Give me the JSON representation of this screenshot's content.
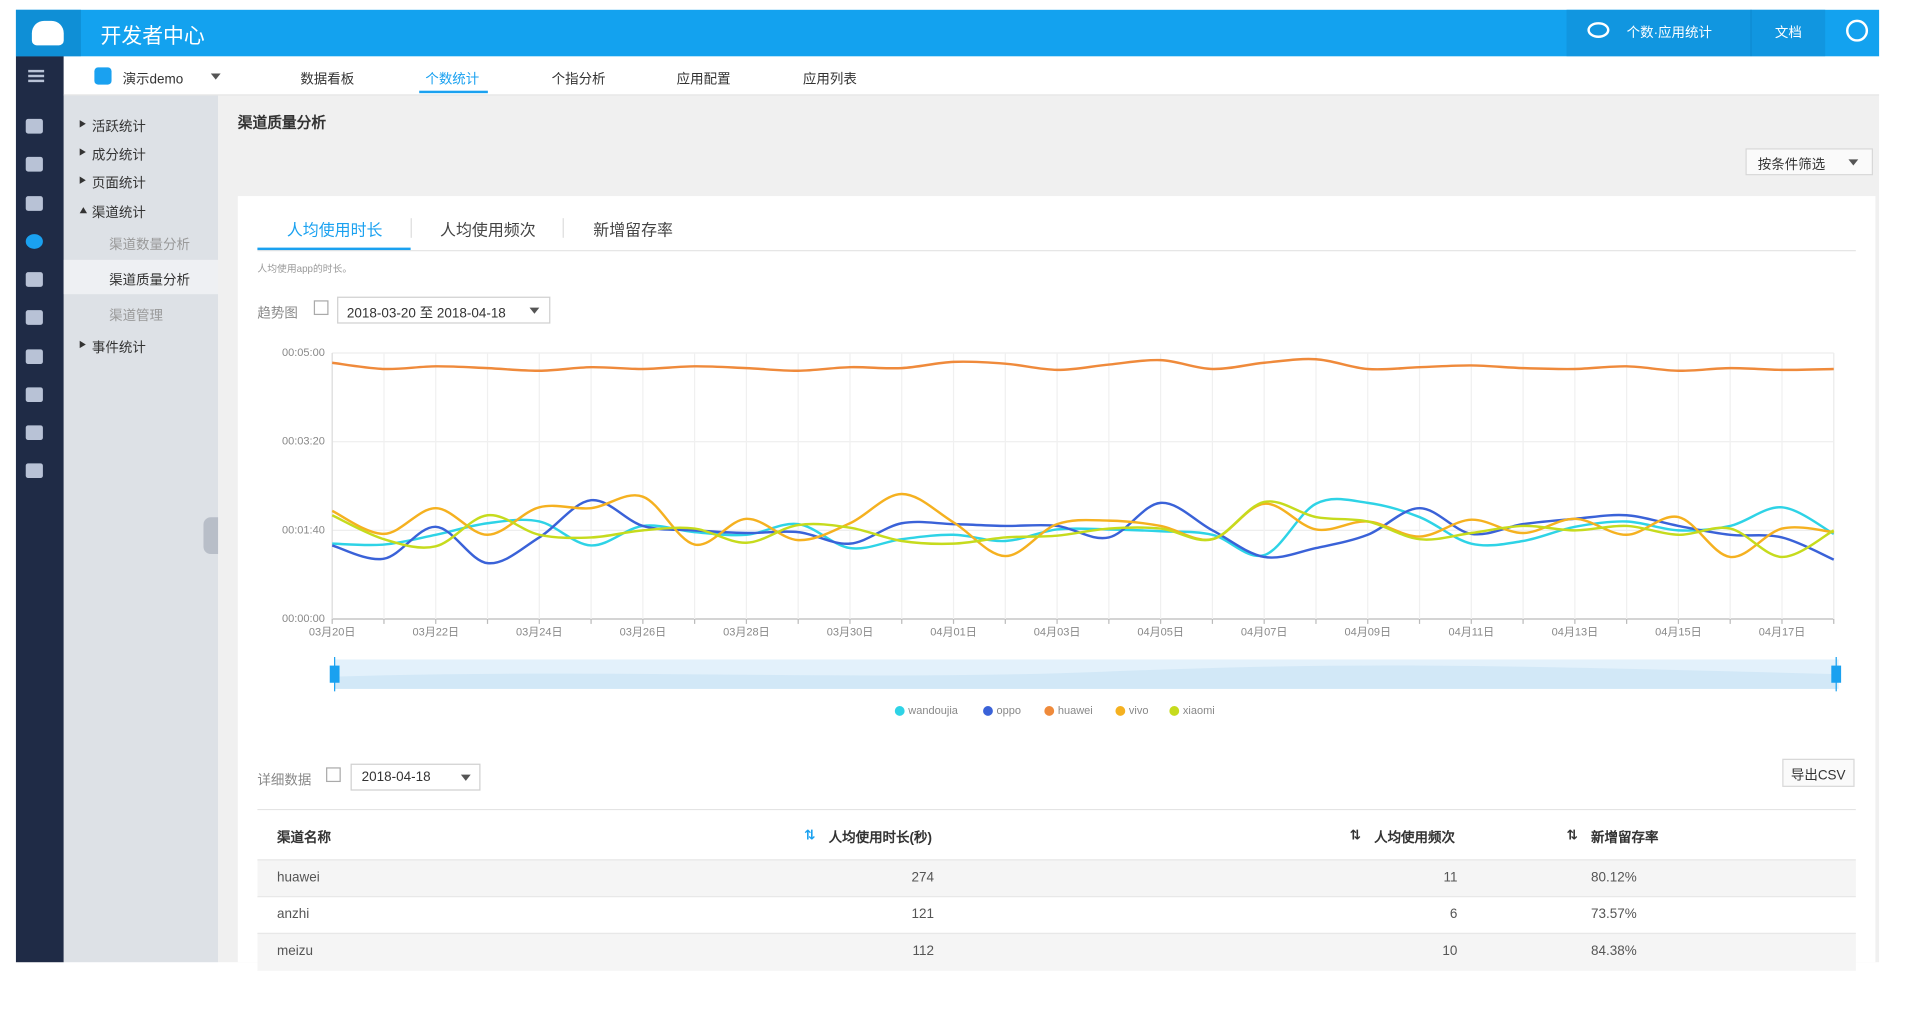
{
  "header": {
    "title": "开发者中心",
    "app_stats": "个数·应用统计",
    "docs": "文档"
  },
  "app_selector": "演示demo",
  "tabs": [
    "数据看板",
    "个数统计",
    "个指分析",
    "应用配置",
    "应用列表"
  ],
  "sidebar": {
    "groups": [
      "活跃统计",
      "成分统计",
      "页面统计",
      "渠道统计"
    ],
    "sub_items": [
      "渠道数量分析",
      "渠道质量分析",
      "渠道管理"
    ],
    "last_group": "事件统计"
  },
  "page_title": "渠道质量分析",
  "filter": "按条件筛选",
  "subtabs": [
    "人均使用时长",
    "人均使用频次",
    "新增留存率"
  ],
  "description": "人均使用app的时长。",
  "trend_label": "趋势图",
  "date_range": "2018-03-20 至 2018-04-18",
  "chart_data": {
    "type": "line",
    "categories": [
      "03月20日",
      null,
      "03月22日",
      null,
      "03月24日",
      null,
      "03月26日",
      null,
      "03月28日",
      null,
      "03月30日",
      null,
      "04月01日",
      null,
      "04月03日",
      null,
      "04月05日",
      null,
      "04月07日",
      null,
      "04月09日",
      null,
      "04月11日",
      null,
      "04月13日",
      null,
      "04月15日",
      null,
      "04月17日",
      null
    ],
    "series": [
      {
        "name": "wandoujia",
        "color": "#2ed3e6",
        "values": [
          85,
          84,
          95,
          108,
          110,
          83,
          105,
          98,
          95,
          107,
          80,
          90,
          95,
          88,
          101,
          101,
          99,
          95,
          72,
          130,
          131,
          115,
          85,
          88,
          104,
          110,
          100,
          105,
          126,
          96
        ]
      },
      {
        "name": "oppo",
        "color": "#3a62d8",
        "values": [
          83,
          68,
          104,
          63,
          92,
          134,
          105,
          100,
          97,
          98,
          85,
          108,
          107,
          105,
          105,
          92,
          131,
          100,
          70,
          80,
          95,
          125,
          96,
          107,
          113,
          117,
          105,
          95,
          92,
          67
        ]
      },
      {
        "name": "huawei",
        "color": "#ef8a3b",
        "values": [
          289,
          282,
          285,
          283,
          280,
          284,
          282,
          285,
          283,
          280,
          284,
          283,
          290,
          288,
          281,
          287,
          292,
          282,
          289,
          293,
          282,
          284,
          286,
          283,
          282,
          285,
          280,
          283,
          281,
          282
        ]
      },
      {
        "name": "vivo",
        "color": "#f5b120",
        "values": [
          122,
          96,
          125,
          95,
          126,
          125,
          138,
          84,
          113,
          89,
          108,
          141,
          109,
          71,
          107,
          111,
          105,
          90,
          130,
          101,
          110,
          93,
          112,
          97,
          113,
          95,
          115,
          70,
          102,
          98
        ]
      },
      {
        "name": "xiaomi",
        "color": "#c6db1d",
        "values": [
          117,
          90,
          82,
          117,
          95,
          92,
          100,
          102,
          86,
          106,
          103,
          88,
          85,
          92,
          94,
          102,
          102,
          90,
          132,
          115,
          110,
          90,
          97,
          105,
          100,
          105,
          95,
          102,
          70,
          100
        ]
      }
    ],
    "ylim": [
      0,
      300
    ],
    "yticks": [
      {
        "value": 0,
        "label": "00:00:00"
      },
      {
        "value": 100,
        "label": "00:01:40"
      },
      {
        "value": 200,
        "label": "00:03:20"
      },
      {
        "value": 300,
        "label": "00:05:00"
      }
    ],
    "grid": true,
    "legend": "bottom"
  },
  "detail": {
    "label": "详细数据",
    "date": "2018-04-18",
    "export": "导出CSV"
  },
  "table": {
    "columns": [
      "渠道名称",
      "人均使用时长(秒)",
      "人均使用频次",
      "新增留存率"
    ],
    "rows": [
      [
        "huawei",
        "274",
        "11",
        "80.12%"
      ],
      [
        "anzhi",
        "121",
        "6",
        "73.57%"
      ],
      [
        "meizu",
        "112",
        "10",
        "84.38%"
      ]
    ]
  }
}
